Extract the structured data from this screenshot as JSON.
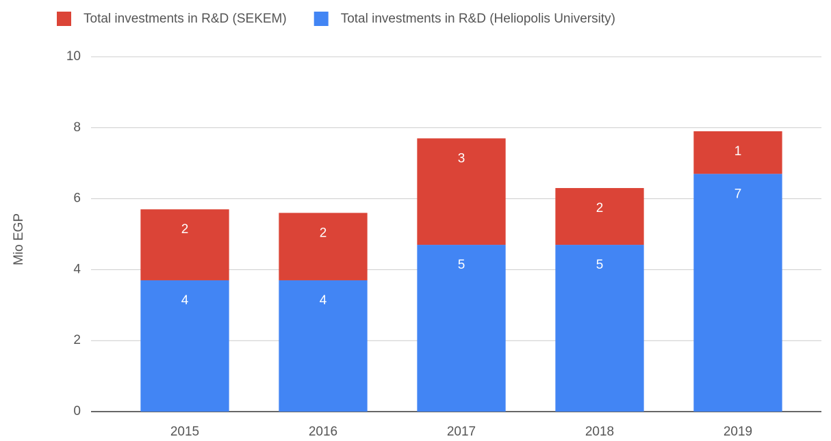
{
  "chart_data": {
    "type": "stacked_bar",
    "y_label": "Mio EGP",
    "categories": [
      "2015",
      "2016",
      "2017",
      "2018",
      "2019"
    ],
    "series": [
      {
        "name": "Total investments in R&D (SEKEM)",
        "color": "#db4437",
        "values": [
          2.0,
          1.9,
          3.0,
          1.6,
          1.2
        ],
        "value_labels": [
          "2",
          "2",
          "3",
          "2",
          "1"
        ]
      },
      {
        "name": "Total investments in R&D (Heliopolis University)",
        "color": "#4285f4",
        "values": [
          3.7,
          3.7,
          4.7,
          4.7,
          6.7
        ],
        "value_labels": [
          "4",
          "4",
          "5",
          "5",
          "7"
        ]
      }
    ],
    "ylim": [
      0,
      10
    ],
    "yticks": [
      0,
      2,
      4,
      6,
      8,
      10
    ],
    "grid": true,
    "legend": "top"
  }
}
